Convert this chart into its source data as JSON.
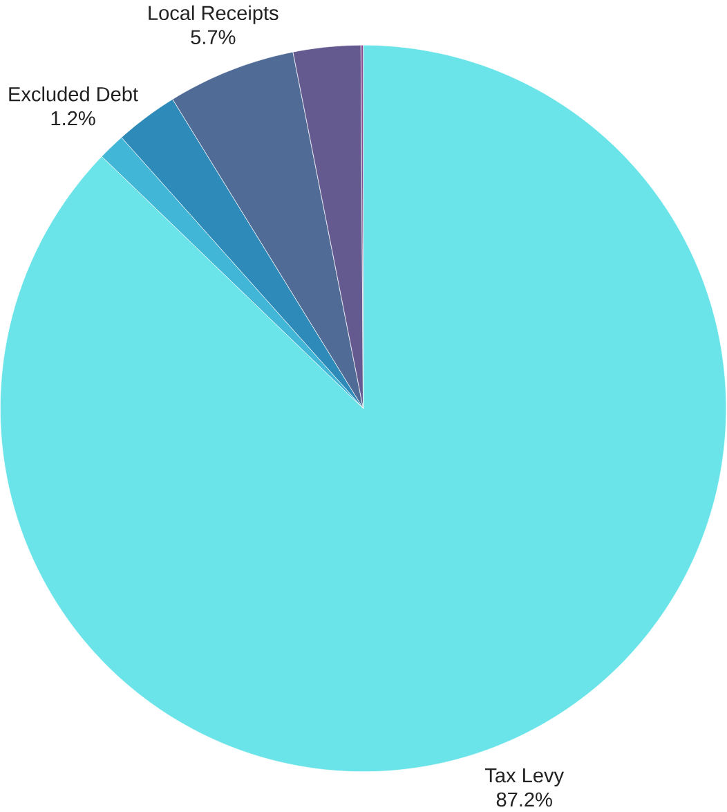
{
  "chart_data": {
    "type": "pie",
    "categories": [
      "Tax Levy",
      "Excluded Debt",
      null,
      "Local Receipts",
      null,
      null
    ],
    "values": [
      87.2,
      1.2,
      2.8,
      5.7,
      3.0,
      0.1
    ],
    "value_labels": [
      "87.2%",
      "1.2%",
      null,
      "5.7%",
      null,
      null
    ],
    "colors": [
      "#6ae4e8",
      "#41b6d6",
      "#2e8bb9",
      "#4f6b96",
      "#655a8f",
      "#8a4a8f"
    ]
  }
}
